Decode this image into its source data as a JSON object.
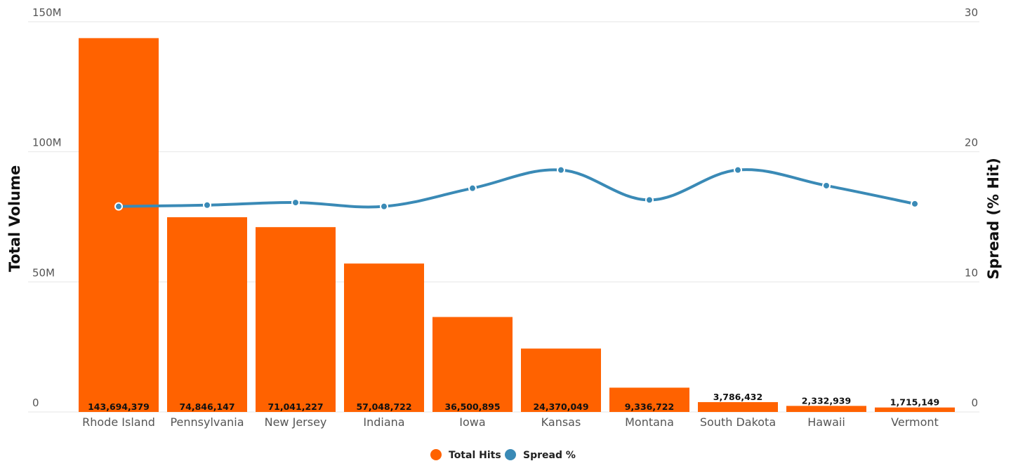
{
  "chart_data": {
    "type": "bar",
    "categories": [
      "Rhode Island",
      "Pennsylvania",
      "New Jersey",
      "Indiana",
      "Iowa",
      "Kansas",
      "Montana",
      "South Dakota",
      "Hawaii",
      "Vermont"
    ],
    "series": [
      {
        "name": "Total Hits",
        "type": "bar",
        "axis": "left",
        "color": "#ff6200",
        "values": [
          143694379,
          74846147,
          71041227,
          57048722,
          36500895,
          24370049,
          9336722,
          3786432,
          2332939,
          1715149
        ],
        "labels": [
          "143,694,379",
          "74,846,147",
          "71,041,227",
          "57,048,722",
          "36,500,895",
          "24,370,049",
          "9,336,722",
          "3,786,432",
          "2,332,939",
          "1,715,149"
        ]
      },
      {
        "name": "Spread %",
        "type": "line",
        "axis": "right",
        "color": "#3a8ab6",
        "values": [
          15.8,
          15.9,
          16.1,
          15.8,
          17.2,
          18.6,
          16.3,
          18.6,
          17.4,
          16.0
        ]
      }
    ],
    "ylabel": "Total Volume",
    "y2label": "Spread (% Hit)",
    "ylim": [
      0,
      150000000
    ],
    "y2lim": [
      0,
      30
    ],
    "yticks": [
      {
        "value": 0,
        "label": "0"
      },
      {
        "value": 50000000,
        "label": "50M"
      },
      {
        "value": 100000000,
        "label": "100M"
      },
      {
        "value": 150000000,
        "label": "150M"
      }
    ],
    "y2ticks": [
      {
        "value": 0,
        "label": "0"
      },
      {
        "value": 10,
        "label": "10"
      },
      {
        "value": 20,
        "label": "20"
      },
      {
        "value": 30,
        "label": "30"
      }
    ],
    "grid": true,
    "legend_position": "bottom-center"
  }
}
